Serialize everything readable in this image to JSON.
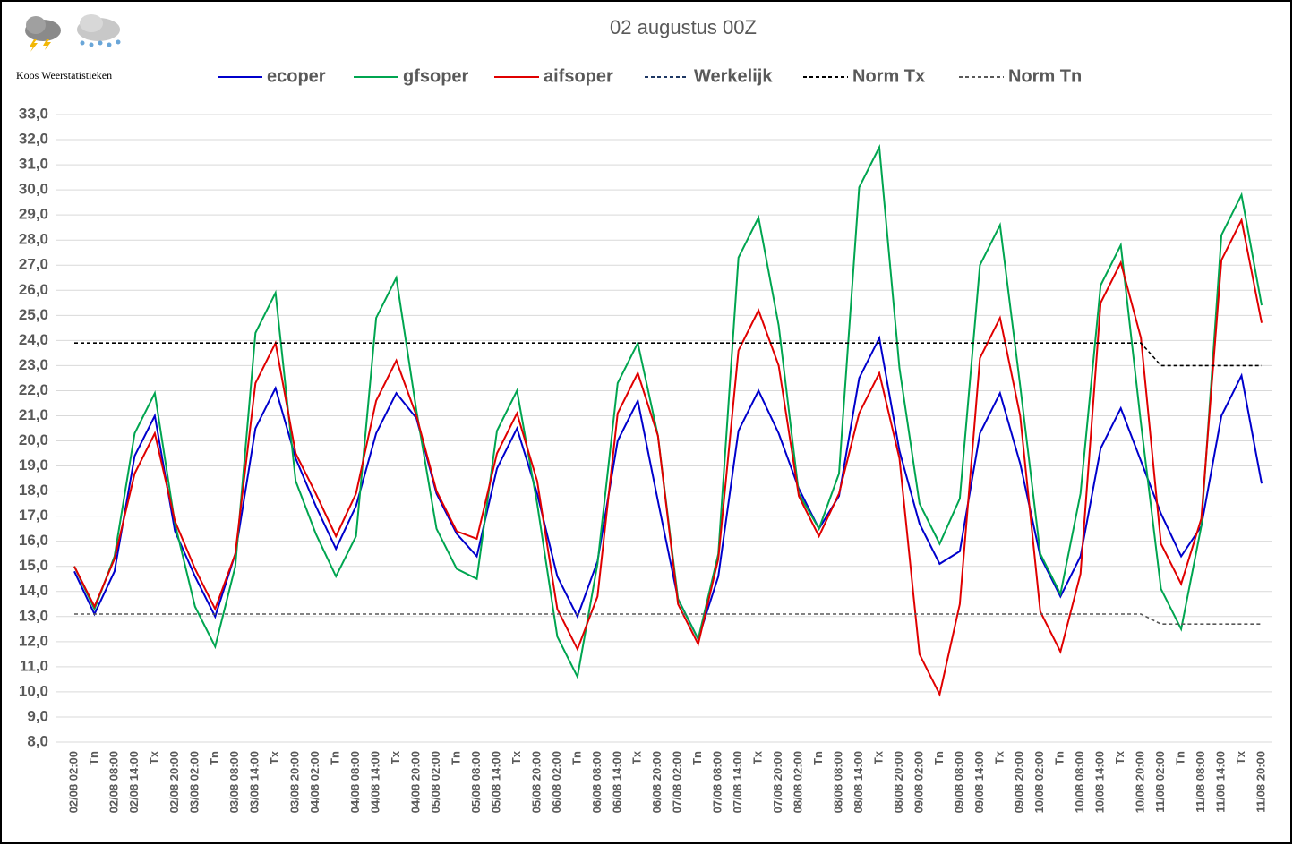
{
  "chart_data": {
    "type": "line",
    "title": "02 augustus 00Z",
    "source": "Koos Weerstatistieken",
    "categories": [
      "02/08 02:00",
      "Tn",
      "02/08 08:00",
      "02/08 14:00",
      "Tx",
      "02/08 20:00",
      "03/08 02:00",
      "Tn",
      "03/08 08:00",
      "03/08 14:00",
      "Tx",
      "03/08 20:00",
      "04/08 02:00",
      "Tn",
      "04/08 08:00",
      "04/08 14:00",
      "Tx",
      "04/08 20:00",
      "05/08 02:00",
      "Tn",
      "05/08 08:00",
      "05/08 14:00",
      "Tx",
      "05/08 20:00",
      "06/08 02:00",
      "Tn",
      "06/08 08:00",
      "06/08 14:00",
      "Tx",
      "06/08 20:00",
      "07/08 02:00",
      "Tn",
      "07/08 08:00",
      "07/08 14:00",
      "Tx",
      "07/08 20:00",
      "08/08 02:00",
      "Tn",
      "08/08 08:00",
      "08/08 14:00",
      "Tx",
      "08/08 20:00",
      "09/08 02:00",
      "Tn",
      "09/08 08:00",
      "09/08 14:00",
      "Tx",
      "09/08 20:00",
      "10/08 02:00",
      "Tn",
      "10/08 08:00",
      "10/08 14:00",
      "Tx",
      "10/08 20:00",
      "11/08 02:00",
      "Tn",
      "11/08 08:00",
      "11/08 14:00",
      "Tx",
      "11/08 20:00"
    ],
    "series": [
      {
        "name": "ecoper",
        "color": "#0000cc",
        "dashed": false,
        "values": [
          14.8,
          13.1,
          14.8,
          19.4,
          21.0,
          16.4,
          14.6,
          13.0,
          15.5,
          20.5,
          22.1,
          19.3,
          17.4,
          15.7,
          17.4,
          20.3,
          21.9,
          20.9,
          17.9,
          16.3,
          15.4,
          18.9,
          20.5,
          17.9,
          14.6,
          13.0,
          15.2,
          20.0,
          21.6,
          17.6,
          13.7,
          12.1,
          14.6,
          20.4,
          22.0,
          20.3,
          18.1,
          16.5,
          17.8,
          22.5,
          24.1,
          19.6,
          16.7,
          15.1,
          15.6,
          20.3,
          21.9,
          19.1,
          15.4,
          13.8,
          15.4,
          19.7,
          21.3,
          19.2,
          17.1,
          15.4,
          16.6,
          21.0,
          22.6,
          18.3
        ]
      },
      {
        "name": "gfsoper",
        "color": "#00a550",
        "dashed": false,
        "values": [
          15.0,
          13.3,
          15.4,
          20.3,
          21.9,
          16.7,
          13.4,
          11.8,
          15.0,
          24.3,
          25.9,
          18.4,
          16.3,
          14.6,
          16.2,
          24.9,
          26.5,
          21.2,
          16.5,
          14.9,
          14.5,
          20.4,
          22.0,
          17.5,
          12.2,
          10.6,
          15.1,
          22.3,
          23.9,
          20.2,
          13.7,
          12.1,
          15.5,
          27.3,
          28.9,
          24.6,
          17.9,
          16.5,
          18.7,
          30.1,
          31.7,
          22.9,
          17.5,
          15.9,
          17.7,
          27.0,
          28.6,
          22.2,
          15.5,
          13.9,
          17.9,
          26.2,
          27.8,
          20.7,
          14.1,
          12.5,
          16.6,
          28.2,
          29.8,
          25.4
        ]
      },
      {
        "name": "aifsoper",
        "color": "#e00000",
        "dashed": false,
        "values": [
          15.0,
          13.4,
          15.3,
          18.7,
          20.3,
          16.8,
          14.9,
          13.3,
          15.5,
          22.3,
          23.9,
          19.5,
          17.9,
          16.2,
          17.9,
          21.6,
          23.2,
          21.0,
          18.0,
          16.4,
          16.1,
          19.5,
          21.1,
          18.4,
          13.3,
          11.7,
          13.8,
          21.1,
          22.7,
          20.2,
          13.5,
          11.9,
          15.3,
          23.6,
          25.2,
          23.0,
          17.8,
          16.2,
          17.9,
          21.1,
          22.7,
          19.3,
          11.5,
          9.9,
          13.5,
          23.3,
          24.9,
          21.0,
          13.2,
          11.6,
          14.7,
          25.5,
          27.1,
          24.1,
          15.9,
          14.3,
          16.9,
          27.2,
          28.8,
          24.7
        ]
      },
      {
        "name": "Werkelijk",
        "color": "#1f3864",
        "dashed": true,
        "values": [
          null,
          null,
          null,
          null,
          null,
          null,
          null,
          null,
          null,
          null,
          null,
          null,
          null,
          null,
          null,
          null,
          null,
          null,
          null,
          null,
          null,
          null,
          null,
          null,
          null,
          null,
          null,
          null,
          null,
          null,
          null,
          null,
          null,
          null,
          null,
          null,
          null,
          null,
          null,
          null,
          null,
          null,
          null,
          null,
          null,
          null,
          null,
          null,
          null,
          null,
          null,
          null,
          null,
          null,
          null,
          null,
          null,
          null,
          null,
          null
        ]
      },
      {
        "name": "Norm Tx",
        "color": "#000000",
        "dashed": true,
        "values": [
          23.9,
          23.9,
          23.9,
          23.9,
          23.9,
          23.9,
          23.9,
          23.9,
          23.9,
          23.9,
          23.9,
          23.9,
          23.9,
          23.9,
          23.9,
          23.9,
          23.9,
          23.9,
          23.9,
          23.9,
          23.9,
          23.9,
          23.9,
          23.9,
          23.9,
          23.9,
          23.9,
          23.9,
          23.9,
          23.9,
          23.9,
          23.9,
          23.9,
          23.9,
          23.9,
          23.9,
          23.9,
          23.9,
          23.9,
          23.9,
          23.9,
          23.9,
          23.9,
          23.9,
          23.9,
          23.9,
          23.9,
          23.9,
          23.9,
          23.9,
          23.9,
          23.9,
          23.9,
          23.9,
          23.0,
          23.0,
          23.0,
          23.0,
          23.0,
          23.0
        ]
      },
      {
        "name": "Norm Tn",
        "color": "#595959",
        "dashed": true,
        "values": [
          13.1,
          13.1,
          13.1,
          13.1,
          13.1,
          13.1,
          13.1,
          13.1,
          13.1,
          13.1,
          13.1,
          13.1,
          13.1,
          13.1,
          13.1,
          13.1,
          13.1,
          13.1,
          13.1,
          13.1,
          13.1,
          13.1,
          13.1,
          13.1,
          13.1,
          13.1,
          13.1,
          13.1,
          13.1,
          13.1,
          13.1,
          13.1,
          13.1,
          13.1,
          13.1,
          13.1,
          13.1,
          13.1,
          13.1,
          13.1,
          13.1,
          13.1,
          13.1,
          13.1,
          13.1,
          13.1,
          13.1,
          13.1,
          13.1,
          13.1,
          13.1,
          13.1,
          13.1,
          13.1,
          12.7,
          12.7,
          12.7,
          12.7,
          12.7,
          12.7
        ]
      }
    ],
    "ylim": [
      8,
      33
    ],
    "yticks": [
      {
        "value": 8,
        "label": "8,0"
      },
      {
        "value": 9,
        "label": "9,0"
      },
      {
        "value": 10,
        "label": "10,0"
      },
      {
        "value": 11,
        "label": "11,0"
      },
      {
        "value": 12,
        "label": "12,0"
      },
      {
        "value": 13,
        "label": "13,0"
      },
      {
        "value": 14,
        "label": "14,0"
      },
      {
        "value": 15,
        "label": "15,0"
      },
      {
        "value": 16,
        "label": "16,0"
      },
      {
        "value": 17,
        "label": "17,0"
      },
      {
        "value": 18,
        "label": "18,0"
      },
      {
        "value": 19,
        "label": "19,0"
      },
      {
        "value": 20,
        "label": "20,0"
      },
      {
        "value": 21,
        "label": "21,0"
      },
      {
        "value": 22,
        "label": "22,0"
      },
      {
        "value": 23,
        "label": "23,0"
      },
      {
        "value": 24,
        "label": "24,0"
      },
      {
        "value": 25,
        "label": "25,0"
      },
      {
        "value": 26,
        "label": "26,0"
      },
      {
        "value": 27,
        "label": "27,0"
      },
      {
        "value": 28,
        "label": "28,0"
      },
      {
        "value": 29,
        "label": "29,0"
      },
      {
        "value": 30,
        "label": "30,0"
      },
      {
        "value": 31,
        "label": "31,0"
      },
      {
        "value": 32,
        "label": "32,0"
      },
      {
        "value": 33,
        "label": "33,0"
      }
    ],
    "grid": true,
    "legend": "top"
  }
}
